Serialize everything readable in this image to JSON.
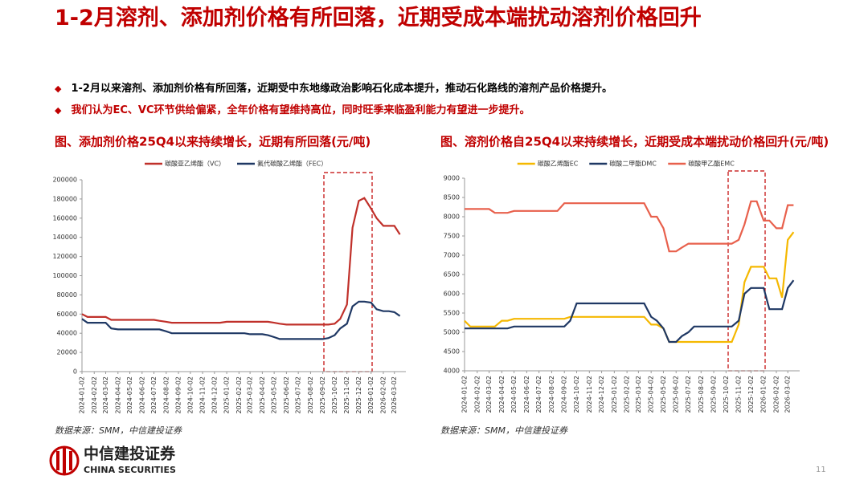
{
  "header": {
    "title": "1-2月溶剂、添加剂价格有所回落，近期受成本端扰动溶剂价格回升"
  },
  "bullets": [
    "1-2月以来溶剂、添加剂价格有所回落，近期受中东地缘政治影响石化成本提升，推动石化路线的溶剂产品价格提升。",
    "我们认为EC、VC环节供给偏紧，全年价格有望维持高位，同时旺季来临盈利能力有望进一步提升。"
  ],
  "footer": {
    "logo_cn": "中信建投证券",
    "logo_en": "CHINA SECURITIES",
    "page": "11"
  },
  "chart_data": [
    {
      "type": "line",
      "title": "图、添加剂价格25Q4以来持续增长，近期有所回落(元/吨)",
      "source": "数据来源：SMM，中信建投证券",
      "legend": "top",
      "grid": false,
      "x": [
        "2024-01-02",
        "2024-01-16",
        "2024-02-02",
        "2024-02-16",
        "2024-03-02",
        "2024-03-16",
        "2024-04-02",
        "2024-04-16",
        "2024-05-02",
        "2024-05-16",
        "2024-06-02",
        "2024-06-16",
        "2024-07-02",
        "2024-07-16",
        "2024-08-02",
        "2024-08-16",
        "2024-09-02",
        "2024-09-16",
        "2024-10-02",
        "2024-10-16",
        "2024-11-02",
        "2024-11-16",
        "2024-12-02",
        "2024-12-16",
        "2025-01-02",
        "2025-01-16",
        "2025-02-02",
        "2025-02-16",
        "2025-03-02",
        "2025-03-16",
        "2025-04-02",
        "2025-04-16",
        "2025-05-02",
        "2025-05-16",
        "2025-06-02",
        "2025-06-16",
        "2025-07-02",
        "2025-07-16",
        "2025-08-02",
        "2025-08-16",
        "2025-09-02",
        "2025-09-16",
        "2025-10-02",
        "2025-10-16",
        "2025-11-02",
        "2025-11-16",
        "2025-12-02",
        "2025-12-16",
        "2026-01-02",
        "2026-01-16",
        "2026-02-02",
        "2026-02-16",
        "2026-03-02",
        "2026-03-16"
      ],
      "xlim": [
        "2024-01-02",
        "2026-03-31"
      ],
      "xticks": [
        "2024-01-02",
        "2024-02-02",
        "2024-03-02",
        "2024-04-02",
        "2024-05-02",
        "2024-06-02",
        "2024-07-02",
        "2024-08-02",
        "2024-09-02",
        "2024-10-02",
        "2024-11-02",
        "2024-12-02",
        "2025-01-02",
        "2025-02-02",
        "2025-03-02",
        "2025-04-02",
        "2025-05-02",
        "2025-06-02",
        "2025-07-02",
        "2025-08-02",
        "2025-09-02",
        "2025-10-02",
        "2025-11-02",
        "2025-12-02",
        "2026-01-02",
        "2026-02-02",
        "2026-03-02"
      ],
      "ylim": [
        0,
        200000
      ],
      "yticks": [
        0,
        20000,
        40000,
        60000,
        80000,
        100000,
        120000,
        140000,
        160000,
        180000,
        200000
      ],
      "series": [
        {
          "name": "碳酸亚乙烯酯（VC）",
          "color": "#c0302a",
          "values": [
            60000,
            57000,
            57000,
            57000,
            57000,
            54000,
            54000,
            54000,
            54000,
            54000,
            54000,
            54000,
            54000,
            53000,
            52000,
            51000,
            51000,
            51000,
            51000,
            51000,
            51000,
            51000,
            51000,
            51000,
            52000,
            52000,
            52000,
            52000,
            52000,
            52000,
            52000,
            52000,
            51000,
            50000,
            49000,
            49000,
            49000,
            49000,
            49000,
            49000,
            49000,
            49000,
            50000,
            55000,
            70000,
            150000,
            178000,
            181000,
            170000,
            160000,
            152000,
            152000,
            152000,
            143000
          ]
        },
        {
          "name": "氟代碳酸乙烯酯（FEC）",
          "color": "#1f3864",
          "values": [
            55000,
            51000,
            51000,
            51000,
            51000,
            45000,
            44000,
            44000,
            44000,
            44000,
            44000,
            44000,
            44000,
            44000,
            42000,
            40000,
            40000,
            40000,
            40000,
            40000,
            40000,
            40000,
            40000,
            40000,
            40000,
            40000,
            40000,
            40000,
            39000,
            39000,
            39000,
            38000,
            36000,
            34000,
            34000,
            34000,
            34000,
            34000,
            34000,
            34000,
            34000,
            35000,
            38000,
            45000,
            50000,
            68000,
            73000,
            73000,
            72000,
            65000,
            63000,
            63000,
            62000,
            58000
          ]
        }
      ]
    },
    {
      "type": "line",
      "title": "图、溶剂价格自25Q4以来持续增长，近期受成本端扰动价格回升(元/吨)",
      "source": "数据来源：SMM，中信建投证券",
      "legend": "top",
      "grid": false,
      "x": [
        "2024-01-02",
        "2024-01-16",
        "2024-02-02",
        "2024-02-16",
        "2024-03-02",
        "2024-03-16",
        "2024-04-02",
        "2024-04-16",
        "2024-05-02",
        "2024-05-16",
        "2024-06-02",
        "2024-06-16",
        "2024-07-02",
        "2024-07-16",
        "2024-08-02",
        "2024-08-16",
        "2024-09-02",
        "2024-09-16",
        "2024-10-02",
        "2024-10-16",
        "2024-11-02",
        "2024-11-16",
        "2024-12-02",
        "2024-12-16",
        "2025-01-02",
        "2025-01-16",
        "2025-02-02",
        "2025-02-16",
        "2025-03-02",
        "2025-03-16",
        "2025-04-02",
        "2025-04-16",
        "2025-05-02",
        "2025-05-16",
        "2025-06-02",
        "2025-06-16",
        "2025-07-02",
        "2025-07-16",
        "2025-08-02",
        "2025-08-16",
        "2025-09-02",
        "2025-09-16",
        "2025-10-02",
        "2025-10-16",
        "2025-11-02",
        "2025-11-16",
        "2025-12-02",
        "2025-12-16",
        "2026-01-02",
        "2026-01-16",
        "2026-02-02",
        "2026-02-16",
        "2026-03-02",
        "2026-03-16"
      ],
      "xlim": [
        "2024-01-02",
        "2026-03-31"
      ],
      "xticks": [
        "2024-01-02",
        "2024-02-02",
        "2024-03-02",
        "2024-04-02",
        "2024-05-02",
        "2024-06-02",
        "2024-07-02",
        "2024-08-02",
        "2024-09-02",
        "2024-10-02",
        "2024-11-02",
        "2024-12-02",
        "2025-01-02",
        "2025-02-02",
        "2025-03-02",
        "2025-04-02",
        "2025-05-02",
        "2025-06-02",
        "2025-07-02",
        "2025-08-02",
        "2025-09-02",
        "2025-10-02",
        "2025-11-02",
        "2025-12-02",
        "2026-01-02",
        "2026-02-02",
        "2026-03-02"
      ],
      "ylim": [
        4000,
        9000
      ],
      "yticks": [
        4000,
        4500,
        5000,
        5500,
        6000,
        6500,
        7000,
        7500,
        8000,
        8500,
        9000
      ],
      "series": [
        {
          "name": "碳酸乙烯酯EC",
          "color": "#f5b800",
          "values": [
            5300,
            5150,
            5150,
            5150,
            5150,
            5150,
            5300,
            5300,
            5350,
            5350,
            5350,
            5350,
            5350,
            5350,
            5350,
            5350,
            5350,
            5400,
            5400,
            5400,
            5400,
            5400,
            5400,
            5400,
            5400,
            5400,
            5400,
            5400,
            5400,
            5400,
            5200,
            5200,
            5100,
            4750,
            4750,
            4750,
            4750,
            4750,
            4750,
            4750,
            4750,
            4750,
            4750,
            4750,
            5200,
            6300,
            6700,
            6700,
            6700,
            6400,
            6400,
            5900,
            7400,
            7600
          ]
        },
        {
          "name": "碳酸二甲酯DMC",
          "color": "#1f3864",
          "values": [
            5100,
            5100,
            5100,
            5100,
            5100,
            5100,
            5100,
            5100,
            5150,
            5150,
            5150,
            5150,
            5150,
            5150,
            5150,
            5150,
            5150,
            5300,
            5750,
            5750,
            5750,
            5750,
            5750,
            5750,
            5750,
            5750,
            5750,
            5750,
            5750,
            5750,
            5400,
            5300,
            5100,
            4750,
            4750,
            4900,
            5000,
            5150,
            5150,
            5150,
            5150,
            5150,
            5150,
            5150,
            5300,
            6000,
            6150,
            6150,
            6150,
            5600,
            5600,
            5600,
            6150,
            6350
          ]
        },
        {
          "name": "碳酸甲乙酯EMC",
          "color": "#e8604c",
          "values": [
            8200,
            8200,
            8200,
            8200,
            8200,
            8100,
            8100,
            8100,
            8150,
            8150,
            8150,
            8150,
            8150,
            8150,
            8150,
            8150,
            8350,
            8350,
            8350,
            8350,
            8350,
            8350,
            8350,
            8350,
            8350,
            8350,
            8350,
            8350,
            8350,
            8350,
            8000,
            8000,
            7700,
            7100,
            7100,
            7200,
            7300,
            7300,
            7300,
            7300,
            7300,
            7300,
            7300,
            7300,
            7400,
            7800,
            8400,
            8400,
            7900,
            7900,
            7700,
            7700,
            8300,
            8300
          ]
        }
      ]
    }
  ]
}
